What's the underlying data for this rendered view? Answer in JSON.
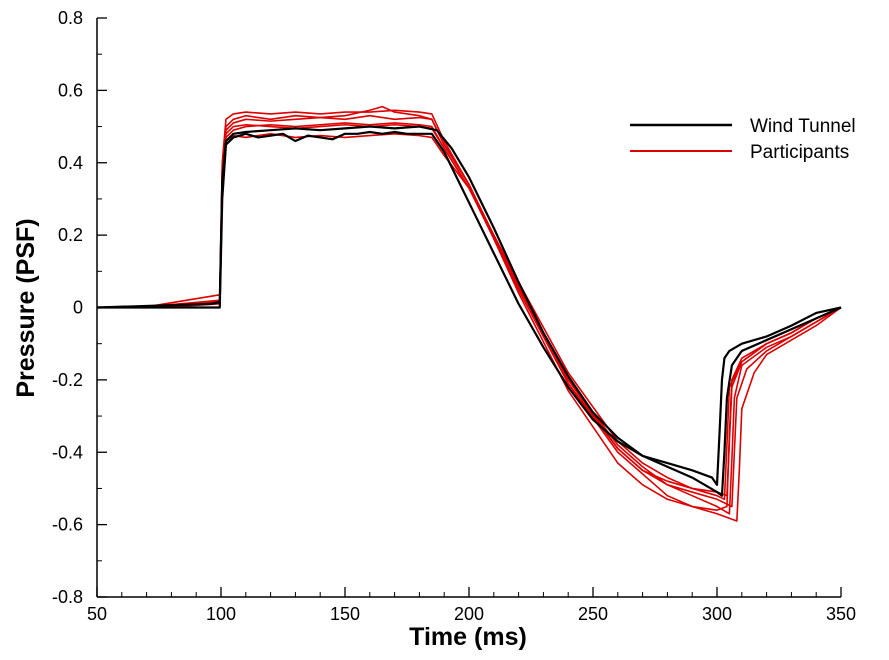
{
  "chart_data": {
    "type": "line",
    "xlabel": "Time (ms)",
    "ylabel": "Pressure (PSF)",
    "xlim": [
      50,
      350
    ],
    "ylim": [
      -0.8,
      0.8
    ],
    "x_ticks": [
      50,
      100,
      150,
      200,
      250,
      300,
      350
    ],
    "y_ticks": [
      -0.8,
      -0.6,
      -0.4,
      -0.2,
      0,
      0.2,
      0.4,
      0.6,
      0.8
    ],
    "x_tick_labels": [
      "50",
      "100",
      "150",
      "200",
      "250",
      "300",
      "350"
    ],
    "y_tick_labels": [
      "-0.8",
      "-0.6",
      "-0.4",
      "-0.2",
      "0",
      "0.2",
      "0.4",
      "0.6",
      "0.8"
    ],
    "grid": false,
    "legend_position": "top-right",
    "legend": [
      {
        "label": "Wind Tunnel",
        "color": "#000000"
      },
      {
        "label": "Participants",
        "color": "#dd0000"
      }
    ],
    "series": [
      {
        "name": "Wind Tunnel",
        "color": "#000000",
        "x": [
          50,
          98,
          99.5,
          100.5,
          102,
          105,
          110,
          115,
          120,
          125,
          130,
          135,
          140,
          145,
          150,
          155,
          160,
          165,
          170,
          175,
          180,
          185,
          190,
          195,
          200,
          210,
          220,
          230,
          240,
          250,
          260,
          270,
          280,
          290,
          298,
          300,
          301,
          302,
          303,
          305,
          310,
          320,
          330,
          340,
          350
        ],
        "y": [
          0.0,
          0.0,
          0.0,
          0.3,
          0.45,
          0.47,
          0.48,
          0.47,
          0.475,
          0.48,
          0.46,
          0.475,
          0.47,
          0.465,
          0.48,
          0.48,
          0.485,
          0.48,
          0.485,
          0.48,
          0.48,
          0.48,
          0.43,
          0.36,
          0.29,
          0.15,
          0.01,
          -0.11,
          -0.22,
          -0.31,
          -0.37,
          -0.41,
          -0.43,
          -0.45,
          -0.47,
          -0.49,
          -0.35,
          -0.2,
          -0.14,
          -0.12,
          -0.1,
          -0.08,
          -0.05,
          -0.015,
          0.0
        ]
      },
      {
        "name": "Wind Tunnel",
        "color": "#000000",
        "x": [
          50,
          96,
          99.5,
          100.5,
          102,
          105,
          110,
          120,
          130,
          140,
          150,
          160,
          170,
          180,
          187,
          193,
          200,
          210,
          220,
          230,
          240,
          250,
          260,
          270,
          280,
          290,
          300,
          302,
          303,
          304,
          306,
          310,
          320,
          330,
          340,
          350
        ],
        "y": [
          0.0,
          0.01,
          0.015,
          0.35,
          0.46,
          0.48,
          0.485,
          0.49,
          0.495,
          0.49,
          0.495,
          0.5,
          0.495,
          0.5,
          0.49,
          0.44,
          0.36,
          0.22,
          0.07,
          -0.07,
          -0.19,
          -0.29,
          -0.36,
          -0.41,
          -0.44,
          -0.47,
          -0.51,
          -0.52,
          -0.4,
          -0.25,
          -0.16,
          -0.12,
          -0.09,
          -0.06,
          -0.03,
          0.0
        ]
      },
      {
        "color": "#dd0000",
        "x": [
          50,
          70,
          99.5,
          100.5,
          102,
          105,
          110,
          120,
          130,
          140,
          150,
          160,
          170,
          180,
          185,
          190,
          200,
          220,
          240,
          260,
          280,
          290,
          300,
          304,
          305,
          306,
          310,
          320,
          330,
          340,
          350
        ],
        "y": [
          0.0,
          0.002,
          0.035,
          0.4,
          0.52,
          0.535,
          0.54,
          0.535,
          0.54,
          0.535,
          0.54,
          0.54,
          0.545,
          0.54,
          0.535,
          0.46,
          0.34,
          0.05,
          -0.21,
          -0.4,
          -0.52,
          -0.55,
          -0.56,
          -0.55,
          -0.35,
          -0.2,
          -0.14,
          -0.1,
          -0.07,
          -0.03,
          0.0
        ]
      },
      {
        "color": "#dd0000",
        "x": [
          50,
          75,
          99.5,
          100.5,
          102,
          105,
          110,
          120,
          130,
          140,
          150,
          160,
          170,
          180,
          185,
          190,
          200,
          220,
          240,
          260,
          270,
          280,
          290,
          300,
          305,
          306,
          307,
          310,
          320,
          330,
          340,
          350
        ],
        "y": [
          0.0,
          0.005,
          0.02,
          0.38,
          0.49,
          0.51,
          0.52,
          0.515,
          0.52,
          0.525,
          0.52,
          0.53,
          0.52,
          0.525,
          0.52,
          0.45,
          0.34,
          0.06,
          -0.2,
          -0.38,
          -0.44,
          -0.49,
          -0.52,
          -0.55,
          -0.57,
          -0.42,
          -0.25,
          -0.16,
          -0.11,
          -0.08,
          -0.04,
          0.0
        ]
      },
      {
        "color": "#dd0000",
        "x": [
          50,
          80,
          99.5,
          100.5,
          102,
          105,
          110,
          120,
          130,
          140,
          150,
          160,
          170,
          180,
          185,
          190,
          200,
          220,
          240,
          260,
          270,
          280,
          290,
          300,
          303,
          304,
          305,
          310,
          320,
          330,
          340,
          350
        ],
        "y": [
          0.0,
          0.003,
          0.015,
          0.36,
          0.47,
          0.49,
          0.5,
          0.505,
          0.5,
          0.505,
          0.51,
          0.505,
          0.51,
          0.505,
          0.5,
          0.44,
          0.33,
          0.07,
          -0.18,
          -0.37,
          -0.43,
          -0.47,
          -0.5,
          -0.52,
          -0.53,
          -0.38,
          -0.22,
          -0.15,
          -0.1,
          -0.07,
          -0.03,
          0.0
        ]
      },
      {
        "color": "#dd0000",
        "x": [
          50,
          80,
          99.5,
          100.5,
          102,
          105,
          110,
          120,
          130,
          140,
          150,
          160,
          170,
          180,
          185,
          190,
          200,
          220,
          240,
          260,
          270,
          280,
          290,
          300,
          306,
          307,
          308,
          312,
          320,
          330,
          340,
          350
        ],
        "y": [
          0.0,
          0.002,
          0.01,
          0.35,
          0.46,
          0.475,
          0.47,
          0.48,
          0.47,
          0.475,
          0.47,
          0.475,
          0.48,
          0.475,
          0.47,
          0.42,
          0.33,
          0.06,
          -0.2,
          -0.39,
          -0.45,
          -0.49,
          -0.51,
          -0.53,
          -0.55,
          -0.4,
          -0.25,
          -0.17,
          -0.12,
          -0.08,
          -0.04,
          0.0
        ]
      },
      {
        "color": "#dd0000",
        "x": [
          50,
          80,
          99.5,
          100.5,
          102,
          105,
          110,
          120,
          130,
          140,
          150,
          160,
          165,
          170,
          180,
          185,
          190,
          200,
          220,
          240,
          260,
          270,
          280,
          290,
          300,
          308,
          309,
          310,
          315,
          320,
          330,
          340,
          350
        ],
        "y": [
          0.0,
          0.003,
          0.02,
          0.38,
          0.5,
          0.52,
          0.53,
          0.52,
          0.53,
          0.525,
          0.53,
          0.545,
          0.555,
          0.54,
          0.53,
          0.52,
          0.45,
          0.34,
          0.04,
          -0.23,
          -0.43,
          -0.49,
          -0.53,
          -0.55,
          -0.57,
          -0.59,
          -0.45,
          -0.28,
          -0.18,
          -0.13,
          -0.09,
          -0.05,
          0.0
        ]
      },
      {
        "color": "#dd0000",
        "x": [
          50,
          80,
          99.5,
          100.5,
          102,
          105,
          110,
          120,
          130,
          140,
          150,
          160,
          170,
          180,
          185,
          190,
          200,
          220,
          240,
          260,
          270,
          280,
          290,
          300,
          304,
          305,
          306,
          310,
          320,
          330,
          340,
          350
        ],
        "y": [
          0.0,
          0.003,
          0.018,
          0.37,
          0.48,
          0.5,
          0.505,
          0.5,
          0.495,
          0.5,
          0.505,
          0.5,
          0.505,
          0.5,
          0.495,
          0.44,
          0.33,
          0.05,
          -0.21,
          -0.39,
          -0.45,
          -0.48,
          -0.5,
          -0.51,
          -0.52,
          -0.37,
          -0.22,
          -0.15,
          -0.1,
          -0.07,
          -0.03,
          0.0
        ]
      }
    ]
  }
}
